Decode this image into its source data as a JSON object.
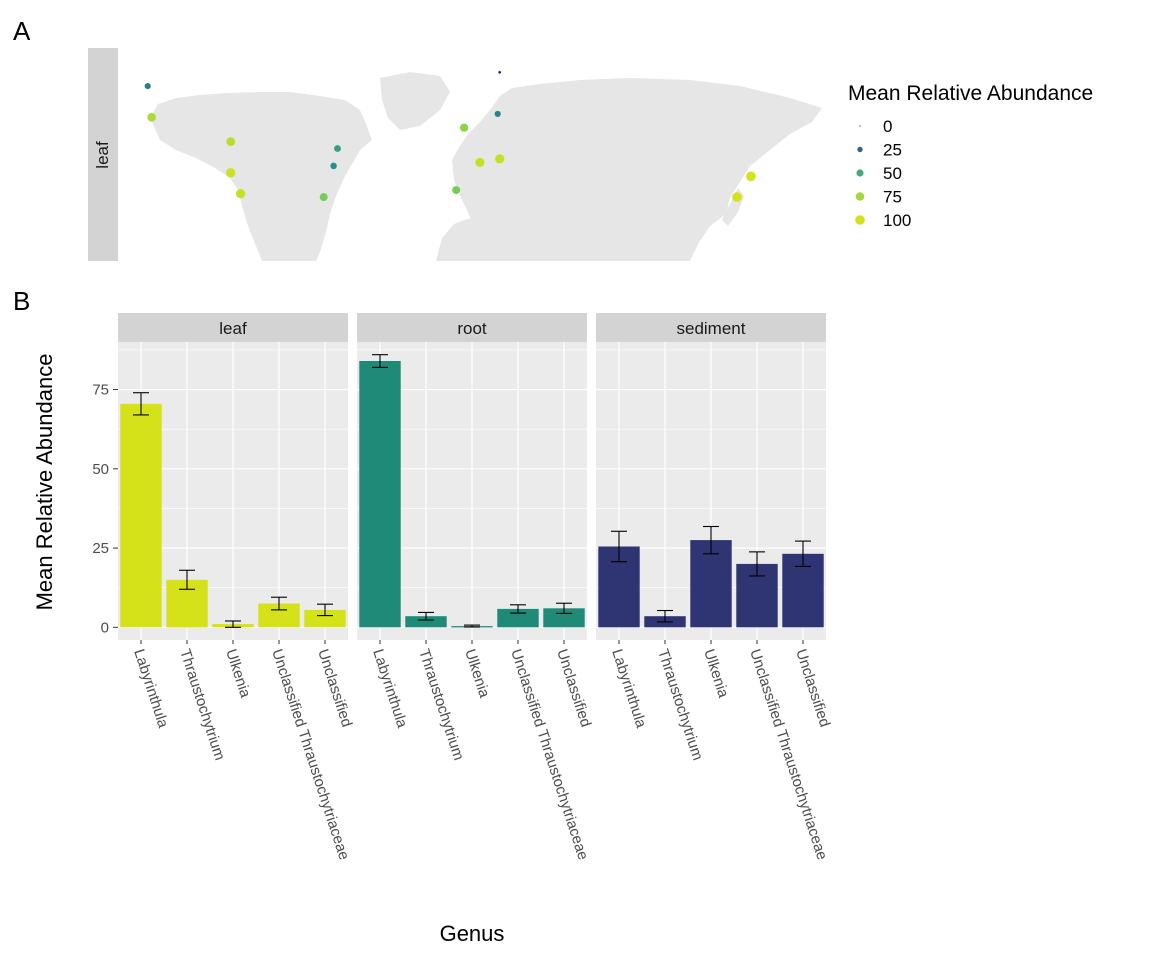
{
  "panels": {
    "a_label": "A",
    "b_label": "B"
  },
  "map": {
    "strip_label": "leaf",
    "legend_title": "Mean Relative Abundance",
    "legend_items": [
      {
        "label": "0",
        "value": 0
      },
      {
        "label": "25",
        "value": 25
      },
      {
        "label": "50",
        "value": 50
      },
      {
        "label": "75",
        "value": 75
      },
      {
        "label": "100",
        "value": 100
      }
    ],
    "points": [
      {
        "lon": -165,
        "lat": 64,
        "value": 35
      },
      {
        "lon": -163,
        "lat": 55,
        "value": 78
      },
      {
        "lon": -123,
        "lat": 48,
        "value": 80
      },
      {
        "lon": -123,
        "lat": 39,
        "value": 95
      },
      {
        "lon": -118,
        "lat": 33,
        "value": 92
      },
      {
        "lon": -69,
        "lat": 46,
        "value": 45
      },
      {
        "lon": -71,
        "lat": 41,
        "value": 40
      },
      {
        "lon": -76,
        "lat": 32,
        "value": 65
      },
      {
        "lon": -5,
        "lat": 52,
        "value": 70
      },
      {
        "lon": -9,
        "lat": 34,
        "value": 65
      },
      {
        "lon": 3,
        "lat": 42,
        "value": 90
      },
      {
        "lon": 13,
        "lat": 43,
        "value": 92
      },
      {
        "lon": 12,
        "lat": 56,
        "value": 35
      },
      {
        "lon": 13,
        "lat": 68,
        "value": 3
      },
      {
        "lon": 140,
        "lat": 38,
        "value": 100
      },
      {
        "lon": 133,
        "lat": 32,
        "value": 100
      }
    ]
  },
  "chart_data": {
    "type": "bar",
    "xlabel": "Genus",
    "ylabel": "Mean Relative Abundance",
    "ylim": [
      -4,
      90
    ],
    "yticks": [
      0,
      25,
      50,
      75
    ],
    "ytick_labels": [
      "0",
      "25",
      "50",
      "75"
    ],
    "categories": [
      "Labyrinthula",
      "Thraustochytrium",
      "Ulkenia",
      "Unclassified Thraustochytriaceae",
      "Unclassified"
    ],
    "facets": [
      {
        "name": "leaf",
        "color": "#d5e21a",
        "values": [
          70.5,
          15,
          1,
          7.5,
          5.5
        ],
        "error": [
          3.5,
          3,
          1,
          2,
          1.8
        ]
      },
      {
        "name": "root",
        "color": "#1f8a78",
        "values": [
          84,
          3.5,
          0.4,
          5.8,
          6
        ],
        "error": [
          2,
          1.2,
          0.3,
          1.3,
          1.6
        ]
      },
      {
        "name": "sediment",
        "color": "#2f3472",
        "values": [
          25.5,
          3.5,
          27.5,
          20,
          23.2
        ],
        "error": [
          4.8,
          1.8,
          4.3,
          3.8,
          4
        ]
      }
    ]
  }
}
